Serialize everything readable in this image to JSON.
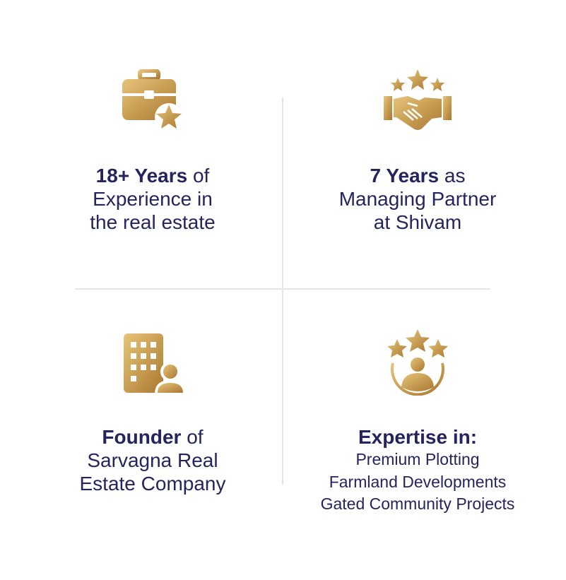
{
  "colors": {
    "text": "#25245e",
    "gold_light": "#e2bf72",
    "gold_dark": "#a9782f",
    "divider": "#e3e3e8"
  },
  "cards": [
    {
      "icon": "briefcase-star-icon",
      "bold": "18+ Years",
      "rest": " of",
      "line2": "Experience in",
      "line3": "the real estate"
    },
    {
      "icon": "handshake-stars-icon",
      "bold": "7 Years",
      "rest": " as",
      "line2": "Managing Partner",
      "line3": "at Shivam"
    },
    {
      "icon": "building-person-icon",
      "bold": "Founder",
      "rest": " of",
      "line2": "Sarvagna Real",
      "line3": "Estate Company"
    },
    {
      "icon": "person-stars-icon",
      "bold": "Expertise in:",
      "rest": "",
      "items": [
        "Premium Plotting",
        "Farmland Developments",
        "Gated Community Projects"
      ]
    }
  ]
}
